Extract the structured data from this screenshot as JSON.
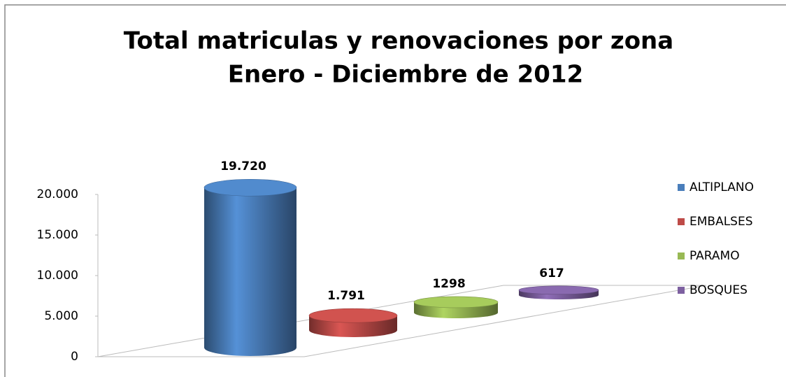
{
  "chart_data": {
    "type": "bar3d",
    "title": "Total matriculas y renovaciones por zona",
    "subtitle": "Enero - Diciembre de 2012",
    "series": [
      {
        "name": "ALTIPLANO",
        "color": "#4a7ebb",
        "values": [
          19720
        ],
        "value_labels": [
          "19.720"
        ]
      },
      {
        "name": "EMBALSES",
        "color": "#be4b48",
        "values": [
          1791
        ],
        "value_labels": [
          "1.791"
        ]
      },
      {
        "name": "PARAMO",
        "color": "#98b954",
        "values": [
          1298
        ],
        "value_labels": [
          "1298"
        ]
      },
      {
        "name": "BOSQUES",
        "color": "#7d60a0",
        "values": [
          617
        ],
        "value_labels": [
          "617"
        ]
      }
    ],
    "ylim": [
      0,
      20000
    ],
    "yticks": [
      0,
      {
        "value": 5000,
        "label": "5.000"
      },
      {
        "value": 10000,
        "label": "10.000"
      },
      {
        "value": 15000,
        "label": "15.000"
      },
      {
        "value": 20000,
        "label": "20.000"
      }
    ],
    "legend": "right"
  }
}
